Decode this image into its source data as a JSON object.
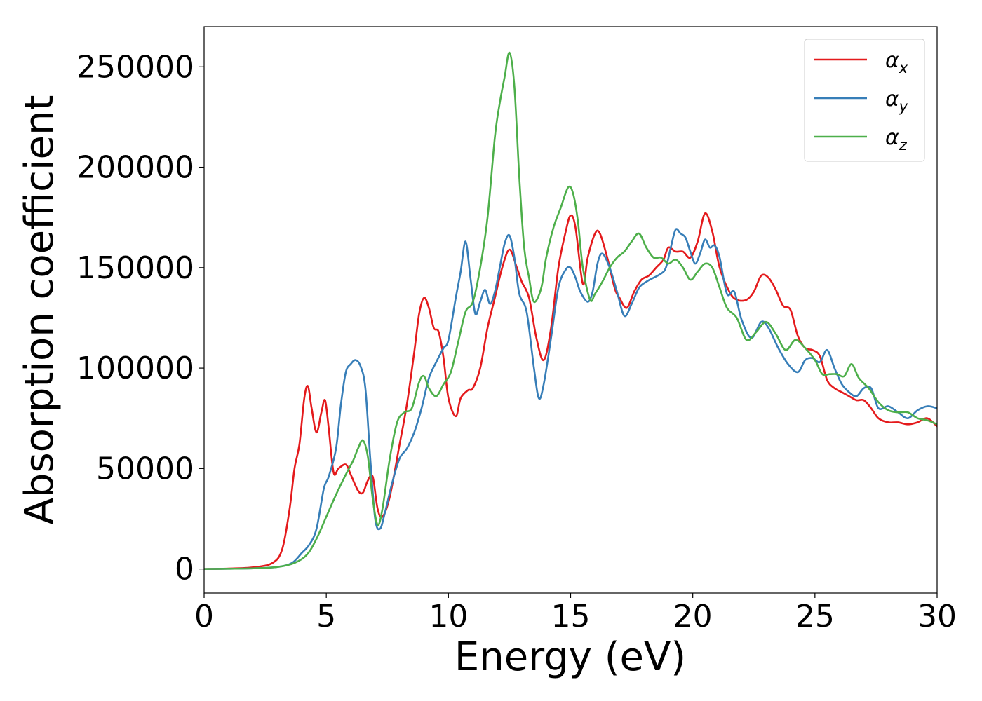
{
  "chart_data": {
    "type": "line",
    "xlabel": "Energy (eV)",
    "ylabel": "Absorption coefficient",
    "xlim": [
      0,
      30
    ],
    "ylim": [
      -12000,
      270000
    ],
    "x_ticks": [
      0,
      5,
      10,
      15,
      20,
      25,
      30
    ],
    "y_ticks": [
      0,
      50000,
      100000,
      150000,
      200000,
      250000
    ],
    "legend_position": "top-right",
    "grid": false,
    "series": [
      {
        "name": "αx",
        "name_base": "α",
        "name_sub": "x",
        "color": "#e41a1c",
        "x": [
          0,
          1,
          2,
          2.8,
          3.2,
          3.5,
          3.7,
          3.9,
          4.1,
          4.25,
          4.4,
          4.6,
          4.8,
          4.95,
          5.1,
          5.3,
          5.5,
          5.8,
          6.0,
          6.3,
          6.5,
          6.7,
          6.9,
          7.1,
          7.3,
          7.6,
          8.0,
          8.3,
          8.6,
          8.8,
          9.0,
          9.2,
          9.4,
          9.6,
          9.8,
          10.0,
          10.3,
          10.5,
          10.8,
          11.0,
          11.3,
          11.6,
          11.9,
          12.2,
          12.5,
          12.8,
          13.0,
          13.3,
          13.6,
          13.9,
          14.2,
          14.5,
          14.8,
          15.0,
          15.2,
          15.5,
          15.7,
          16.0,
          16.2,
          16.5,
          16.8,
          17.0,
          17.3,
          17.6,
          17.9,
          18.2,
          18.5,
          18.8,
          19.0,
          19.3,
          19.6,
          19.9,
          20.2,
          20.5,
          20.8,
          21.1,
          21.5,
          21.8,
          22.2,
          22.5,
          22.8,
          23.1,
          23.4,
          23.7,
          24.0,
          24.3,
          24.6,
          24.9,
          25.2,
          25.5,
          25.8,
          26.1,
          26.4,
          26.7,
          27.0,
          27.3,
          27.6,
          28.0,
          28.4,
          28.8,
          29.2,
          29.6,
          30.0
        ],
        "values": [
          0,
          200,
          800,
          3000,
          10000,
          30000,
          50000,
          62000,
          85000,
          91000,
          80000,
          68000,
          78000,
          84000,
          70000,
          48000,
          50000,
          52000,
          47000,
          39000,
          38000,
          44000,
          46000,
          30000,
          26000,
          36000,
          62000,
          82000,
          108000,
          127000,
          135000,
          130000,
          120000,
          118000,
          105000,
          85000,
          76000,
          85000,
          89000,
          90000,
          100000,
          120000,
          135000,
          150000,
          159000,
          150000,
          143000,
          135000,
          115000,
          104000,
          120000,
          150000,
          168000,
          176000,
          170000,
          142000,
          155000,
          167000,
          167000,
          155000,
          140000,
          135000,
          130000,
          138000,
          144000,
          146000,
          150000,
          154000,
          160000,
          158000,
          158000,
          155000,
          163000,
          177000,
          168000,
          150000,
          138000,
          134000,
          134000,
          138000,
          146000,
          145000,
          139000,
          131000,
          129000,
          116000,
          110000,
          109000,
          106000,
          94000,
          90000,
          88000,
          86000,
          84000,
          84000,
          80000,
          75000,
          73000,
          73000,
          72000,
          73000,
          75000,
          71000
        ]
      },
      {
        "name": "αy",
        "name_base": "α",
        "name_sub": "y",
        "color": "#377eb8",
        "x": [
          0,
          1,
          2,
          3,
          3.6,
          4.0,
          4.3,
          4.6,
          4.9,
          5.1,
          5.4,
          5.6,
          5.8,
          6.0,
          6.2,
          6.4,
          6.6,
          6.8,
          7.0,
          7.2,
          7.4,
          7.7,
          8.0,
          8.3,
          8.6,
          8.9,
          9.2,
          9.5,
          9.8,
          10.0,
          10.3,
          10.5,
          10.7,
          10.9,
          11.1,
          11.3,
          11.5,
          11.7,
          11.9,
          12.1,
          12.3,
          12.5,
          12.7,
          12.9,
          13.2,
          13.5,
          13.7,
          13.9,
          14.2,
          14.5,
          14.8,
          15.0,
          15.2,
          15.4,
          15.7,
          15.9,
          16.1,
          16.3,
          16.6,
          16.9,
          17.2,
          17.5,
          17.8,
          18.1,
          18.4,
          18.7,
          18.9,
          19.1,
          19.3,
          19.5,
          19.7,
          19.9,
          20.1,
          20.3,
          20.5,
          20.7,
          20.9,
          21.1,
          21.4,
          21.7,
          22.0,
          22.4,
          22.8,
          23.1,
          23.5,
          23.9,
          24.3,
          24.6,
          24.9,
          25.2,
          25.5,
          25.8,
          26.1,
          26.4,
          26.7,
          27.0,
          27.3,
          27.6,
          28.0,
          28.4,
          28.8,
          29.2,
          29.6,
          30.0
        ],
        "values": [
          0,
          100,
          300,
          1000,
          3000,
          8000,
          12000,
          20000,
          40000,
          46000,
          60000,
          82000,
          98000,
          102000,
          104000,
          101000,
          90000,
          55000,
          25000,
          20000,
          28000,
          43000,
          55000,
          60000,
          68000,
          80000,
          95000,
          103000,
          110000,
          114000,
          135000,
          148000,
          163000,
          145000,
          127000,
          133000,
          139000,
          132000,
          138000,
          150000,
          162000,
          166000,
          155000,
          137000,
          128000,
          100000,
          85000,
          92000,
          115000,
          140000,
          149000,
          150000,
          145000,
          138000,
          133000,
          138000,
          152000,
          157000,
          150000,
          138000,
          126000,
          132000,
          140000,
          143000,
          145000,
          147000,
          150000,
          160000,
          169000,
          167000,
          165000,
          158000,
          152000,
          157000,
          164000,
          160000,
          161000,
          155000,
          137000,
          138000,
          124000,
          115000,
          123000,
          120000,
          110000,
          102000,
          98000,
          104000,
          105000,
          103000,
          109000,
          100000,
          92000,
          88000,
          86000,
          90000,
          90000,
          80000,
          81000,
          78000,
          75000,
          79000,
          81000,
          80000
        ]
      },
      {
        "name": "αz",
        "name_base": "α",
        "name_sub": "z",
        "color": "#4daf4a",
        "x": [
          0,
          1,
          2,
          3,
          3.7,
          4.2,
          4.6,
          5.0,
          5.4,
          5.8,
          6.1,
          6.3,
          6.5,
          6.7,
          6.9,
          7.1,
          7.3,
          7.6,
          7.9,
          8.2,
          8.5,
          8.8,
          9.0,
          9.2,
          9.5,
          9.8,
          10.1,
          10.4,
          10.7,
          11.0,
          11.3,
          11.6,
          11.9,
          12.1,
          12.3,
          12.5,
          12.7,
          12.9,
          13.1,
          13.3,
          13.5,
          13.8,
          14.0,
          14.3,
          14.6,
          14.9,
          15.1,
          15.3,
          15.5,
          15.8,
          16.0,
          16.3,
          16.6,
          16.9,
          17.2,
          17.5,
          17.8,
          18.1,
          18.4,
          18.7,
          19.0,
          19.3,
          19.6,
          19.9,
          20.2,
          20.5,
          20.8,
          21.1,
          21.4,
          21.8,
          22.2,
          22.6,
          23.0,
          23.4,
          23.8,
          24.2,
          24.6,
          25.0,
          25.3,
          25.6,
          25.9,
          26.2,
          26.5,
          26.8,
          27.2,
          27.6,
          28.0,
          28.4,
          28.8,
          29.2,
          29.6,
          30.0
        ],
        "values": [
          0,
          100,
          300,
          1000,
          3000,
          7000,
          15000,
          26000,
          37000,
          47000,
          54000,
          60000,
          64000,
          56000,
          35000,
          22000,
          30000,
          55000,
          73000,
          78000,
          80000,
          93000,
          96000,
          90000,
          86000,
          92000,
          98000,
          113000,
          128000,
          133000,
          150000,
          175000,
          215000,
          232000,
          245000,
          257000,
          240000,
          195000,
          160000,
          145000,
          133000,
          140000,
          155000,
          170000,
          180000,
          190000,
          187000,
          173000,
          150000,
          134000,
          137000,
          143000,
          150000,
          155000,
          158000,
          163000,
          167000,
          160000,
          155000,
          155000,
          152000,
          154000,
          150000,
          144000,
          148000,
          152000,
          150000,
          140000,
          130000,
          125000,
          114000,
          118000,
          123000,
          117000,
          109000,
          114000,
          110000,
          104000,
          97000,
          97000,
          97000,
          96000,
          102000,
          95000,
          90000,
          83000,
          79000,
          78000,
          78000,
          75000,
          74000,
          72000
        ]
      }
    ]
  }
}
